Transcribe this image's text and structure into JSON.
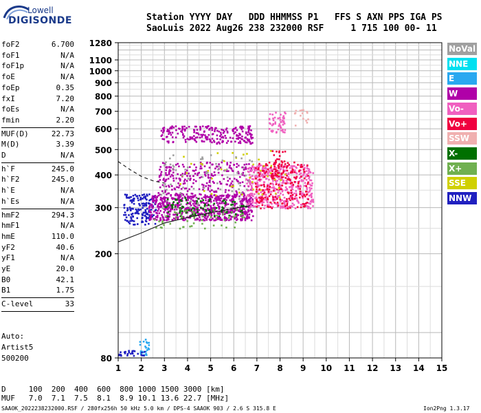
{
  "logo": {
    "top": "Lowell",
    "bottom": "DIGISONDE"
  },
  "header": {
    "line1": "Station YYYY DAY   DDD HHMMSS P1   FFS S AXN PPS IGA PS",
    "line2": "SaoLuis 2022 Aug26 238 232000 RSF     1 715 100 00- 11"
  },
  "params_groups": [
    [
      {
        "name": "foF2",
        "value": "6.700"
      },
      {
        "name": "foF1",
        "value": "N/A"
      },
      {
        "name": "foF1p",
        "value": "N/A"
      },
      {
        "name": "foE",
        "value": "N/A"
      },
      {
        "name": "foEp",
        "value": "0.35"
      },
      {
        "name": "fxI",
        "value": "7.20"
      },
      {
        "name": "foEs",
        "value": "N/A"
      },
      {
        "name": "fmin",
        "value": "2.20"
      }
    ],
    [
      {
        "name": "MUF(D)",
        "value": "22.73"
      },
      {
        "name": "M(D)",
        "value": "3.39"
      },
      {
        "name": "D",
        "value": "N/A"
      }
    ],
    [
      {
        "name": "h`F",
        "value": "245.0"
      },
      {
        "name": "h`F2",
        "value": "245.0"
      },
      {
        "name": "h`E",
        "value": "N/A"
      },
      {
        "name": "h`Es",
        "value": "N/A"
      }
    ],
    [
      {
        "name": "hmF2",
        "value": "294.3"
      },
      {
        "name": "hmF1",
        "value": "N/A"
      },
      {
        "name": "hmE",
        "value": "110.0"
      },
      {
        "name": "yF2",
        "value": "40.6"
      },
      {
        "name": "yF1",
        "value": "N/A"
      },
      {
        "name": "yE",
        "value": "20.0"
      },
      {
        "name": "B0",
        "value": "42.1"
      },
      {
        "name": "B1",
        "value": "1.75"
      }
    ],
    [
      {
        "name": "C-level",
        "value": "33"
      }
    ]
  ],
  "auto": {
    "line1": "Auto:",
    "line2": "Artist5",
    "line3": "500200"
  },
  "legend": [
    {
      "label": "NoVal",
      "color": "#a0a0a0"
    },
    {
      "label": "NNE",
      "color": "#00e0f0"
    },
    {
      "label": "E",
      "color": "#2aa8f0"
    },
    {
      "label": "W",
      "color": "#b000a8"
    },
    {
      "label": "Vo-",
      "color": "#f060c0"
    },
    {
      "label": "Vo+",
      "color": "#f00040"
    },
    {
      "label": "SSW",
      "color": "#f0b0b0"
    },
    {
      "label": "X-",
      "color": "#007000"
    },
    {
      "label": "X+",
      "color": "#70b050"
    },
    {
      "label": "SSE",
      "color": "#d0d000"
    },
    {
      "label": "NNW",
      "color": "#2020c0"
    }
  ],
  "footer": {
    "line1": "D     100  200  400  600  800 1000 1500 3000 [km]",
    "line2": "MUF   7.0  7.1  7.5  8.1  8.9 10.1 13.6 22.7 [MHz]",
    "line3": "SAAOK_2022238232000.RSF / 280fx256h 50 kHz 5.0 km / DPS-4 SAAOK 903 / 2.6 S 315.8 E",
    "version": "Ion2Png 1.3.17"
  },
  "chart_data": {
    "type": "scatter",
    "x_ticks": [
      1,
      2,
      3,
      4,
      5,
      6,
      7,
      8,
      9,
      10,
      11,
      12,
      13,
      14,
      15
    ],
    "y_ticks": [
      80,
      200,
      300,
      400,
      500,
      600,
      700,
      800,
      900,
      1000,
      1100,
      1280
    ],
    "xlim": [
      1,
      15
    ],
    "ylim": [
      80,
      1280
    ],
    "y_scale": "log",
    "grid": true,
    "traces": [
      {
        "name": "F2 ordinary trace",
        "x": [
          1.0,
          2.0,
          3.0,
          4.0,
          5.0,
          6.0,
          6.7
        ],
        "y": [
          222,
          240,
          262,
          275,
          287,
          298,
          305
        ]
      },
      {
        "name": "F2 extraordinary trace",
        "x": [
          1.0,
          1.5,
          2.0,
          2.5,
          3.0
        ],
        "y": [
          450,
          420,
          395,
          380,
          372
        ]
      }
    ],
    "clusters": [
      {
        "color": "#2020c0",
        "x": [
          1.2,
          2.6
        ],
        "y": [
          260,
          340
        ],
        "n": 160
      },
      {
        "color": "#2aa8f0",
        "x": [
          1.9,
          2.3
        ],
        "y": [
          82,
          95
        ],
        "n": 25
      },
      {
        "color": "#2020c0",
        "x": [
          1.0,
          2.2
        ],
        "y": [
          82,
          86
        ],
        "n": 25
      },
      {
        "color": "#b000a8",
        "x": [
          2.3,
          6.8
        ],
        "y": [
          270,
          340
        ],
        "n": 650
      },
      {
        "color": "#b000a8",
        "x": [
          2.7,
          6.8
        ],
        "y": [
          330,
          450
        ],
        "n": 280
      },
      {
        "color": "#b000a8",
        "x": [
          2.8,
          6.8
        ],
        "y": [
          530,
          620
        ],
        "n": 230
      },
      {
        "color": "#f060c0",
        "x": [
          6.5,
          9.4
        ],
        "y": [
          300,
          440
        ],
        "n": 500
      },
      {
        "color": "#f00040",
        "x": [
          6.9,
          9.2
        ],
        "y": [
          300,
          450
        ],
        "n": 200
      },
      {
        "color": "#f060c0",
        "x": [
          7.5,
          8.2
        ],
        "y": [
          580,
          700
        ],
        "n": 55
      },
      {
        "color": "#007000",
        "x": [
          3.0,
          6.5
        ],
        "y": [
          280,
          330
        ],
        "n": 90
      },
      {
        "color": "#70b050",
        "x": [
          2.5,
          6.5
        ],
        "y": [
          250,
          300
        ],
        "n": 60
      },
      {
        "color": "#d0d000",
        "x": [
          3.5,
          8.2
        ],
        "y": [
          330,
          500
        ],
        "n": 45
      },
      {
        "color": "#a0a0a0",
        "x": [
          2.8,
          6.8
        ],
        "y": [
          300,
          480
        ],
        "n": 70
      },
      {
        "color": "#f00040",
        "x": [
          7.6,
          8.2
        ],
        "y": [
          400,
          500
        ],
        "n": 40
      },
      {
        "color": "#f0b0b0",
        "x": [
          8.6,
          9.2
        ],
        "y": [
          620,
          720
        ],
        "n": 15
      }
    ]
  }
}
